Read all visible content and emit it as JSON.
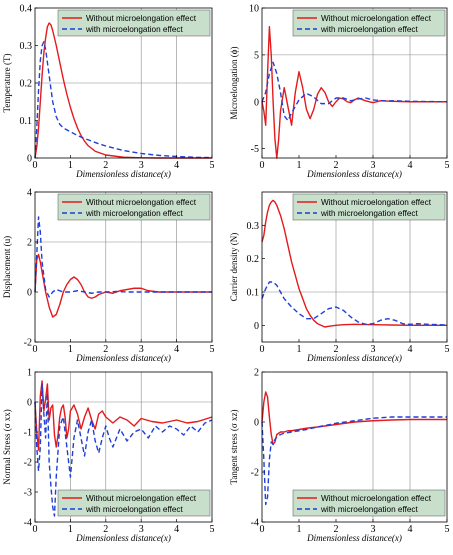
{
  "colors": {
    "series_without": "#e41a1c",
    "series_with": "#1f3fd6",
    "legend_bg": "#c7dfcb",
    "guide_line": "#8a8a8a"
  },
  "legend": {
    "without_label": "Without microelongation effect",
    "with_label": "with microelongation effect"
  },
  "chart_data": [
    {
      "type": "line",
      "ylabel": "Temperature (T)",
      "xlabel": "Dimensionless distance(x)",
      "xlim": [
        0,
        5
      ],
      "ylim": [
        0,
        0.4
      ],
      "xticks": [
        "0",
        "1",
        "2",
        "3",
        "4",
        "5"
      ],
      "yticks": [
        "0",
        "0.1",
        "0.2",
        "0.3",
        "0.4"
      ],
      "legend_position": "top-right",
      "series": [
        {
          "name": "Without microelongation effect",
          "x": [
            0,
            0.05,
            0.1,
            0.15,
            0.2,
            0.25,
            0.3,
            0.35,
            0.4,
            0.45,
            0.5,
            0.6,
            0.7,
            0.8,
            0.9,
            1.0,
            1.1,
            1.2,
            1.3,
            1.4,
            1.5,
            1.7,
            2.0,
            2.5,
            3.0,
            3.5,
            4.0,
            5.0
          ],
          "y": [
            0,
            0.03,
            0.08,
            0.15,
            0.22,
            0.28,
            0.32,
            0.35,
            0.36,
            0.355,
            0.34,
            0.3,
            0.255,
            0.21,
            0.17,
            0.135,
            0.105,
            0.08,
            0.06,
            0.045,
            0.033,
            0.018,
            0.008,
            0.002,
            0.0005,
            0,
            0,
            0
          ]
        },
        {
          "name": "with microelongation effect",
          "x": [
            0,
            0.05,
            0.1,
            0.15,
            0.2,
            0.25,
            0.3,
            0.4,
            0.5,
            0.6,
            0.7,
            0.8,
            0.9,
            1.0,
            1.2,
            1.4,
            1.6,
            1.8,
            2.0,
            2.5,
            3.0,
            3.5,
            4.0,
            4.5,
            5.0
          ],
          "y": [
            0,
            0.08,
            0.18,
            0.26,
            0.3,
            0.31,
            0.29,
            0.22,
            0.15,
            0.11,
            0.09,
            0.08,
            0.075,
            0.07,
            0.06,
            0.052,
            0.045,
            0.038,
            0.032,
            0.02,
            0.012,
            0.007,
            0.004,
            0.002,
            0.001
          ]
        }
      ]
    },
    {
      "type": "line",
      "ylabel": "Microelongation (ϕ)",
      "xlabel": "Dimensionless distance(x)",
      "xlim": [
        0,
        5
      ],
      "ylim": [
        -6,
        10
      ],
      "xticks": [
        "0",
        "1",
        "2",
        "3",
        "4",
        "5"
      ],
      "yticks": [
        "-5",
        "0",
        "5",
        "10"
      ],
      "legend_position": "top-right",
      "series": [
        {
          "name": "Without microelongation effect",
          "x": [
            0,
            0.05,
            0.1,
            0.15,
            0.2,
            0.25,
            0.3,
            0.35,
            0.4,
            0.45,
            0.5,
            0.6,
            0.7,
            0.8,
            0.9,
            1.0,
            1.1,
            1.2,
            1.3,
            1.4,
            1.5,
            1.6,
            1.7,
            1.8,
            1.9,
            2.0,
            2.1,
            2.2,
            2.3,
            2.4,
            2.5,
            2.6,
            2.8,
            3.0,
            3.2,
            3.5,
            4.0,
            4.5,
            5.0
          ],
          "y": [
            0,
            -1,
            -2.5,
            3,
            8,
            5,
            0,
            -4,
            -6,
            -4,
            -1,
            1.5,
            -0.5,
            -2.5,
            1,
            3.2,
            1.5,
            -0.8,
            -1.8,
            -0.8,
            0.8,
            1.5,
            1.0,
            0.0,
            -0.5,
            0,
            0.4,
            0.3,
            0.0,
            -0.1,
            0.2,
            0.4,
            0.1,
            -0.1,
            0.1,
            0.05,
            0,
            0,
            0
          ]
        },
        {
          "name": "with microelongation effect",
          "x": [
            0,
            0.1,
            0.2,
            0.3,
            0.4,
            0.5,
            0.6,
            0.7,
            0.8,
            0.9,
            1.0,
            1.2,
            1.4,
            1.6,
            1.8,
            2.0,
            2.2,
            2.4,
            2.6,
            2.8,
            3.0,
            3.3,
            3.6,
            4.0,
            4.5,
            5.0
          ],
          "y": [
            0,
            1,
            3,
            4.2,
            3,
            1,
            -1.5,
            -2.0,
            -1.2,
            -0.5,
            0.2,
            0.9,
            0.5,
            -0.2,
            -0.2,
            0.4,
            0.4,
            0.1,
            0.3,
            0.4,
            0.2,
            0.1,
            0.1,
            0.05,
            0.02,
            0
          ]
        }
      ]
    },
    {
      "type": "line",
      "ylabel": "Displacement  (u)",
      "xlabel": "Dimensionless distance(x)",
      "xlim": [
        0,
        5
      ],
      "ylim": [
        -2,
        4
      ],
      "xticks": [
        "0",
        "1",
        "2",
        "3",
        "4",
        "5"
      ],
      "yticks": [
        "-2",
        "0",
        "2",
        "4"
      ],
      "legend_position": "top-right",
      "series": [
        {
          "name": "Without microelongation effect",
          "x": [
            0,
            0.05,
            0.1,
            0.15,
            0.2,
            0.3,
            0.4,
            0.5,
            0.6,
            0.7,
            0.8,
            0.9,
            1.0,
            1.1,
            1.2,
            1.3,
            1.4,
            1.5,
            1.6,
            1.7,
            1.8,
            2.0,
            2.2,
            2.4,
            2.6,
            2.8,
            3.0,
            3.2,
            3.5,
            4.0,
            4.5,
            5.0
          ],
          "y": [
            0,
            1.3,
            1.5,
            1.2,
            0.8,
            0.0,
            -0.6,
            -1.0,
            -0.9,
            -0.5,
            0.0,
            0.3,
            0.5,
            0.6,
            0.5,
            0.3,
            0.0,
            -0.2,
            -0.25,
            -0.2,
            -0.1,
            0.0,
            -0.05,
            0.05,
            0.1,
            0.15,
            0.15,
            0.05,
            0.0,
            0.0,
            0.0,
            0.0
          ]
        },
        {
          "name": "with microelongation effect",
          "x": [
            0,
            0.05,
            0.1,
            0.15,
            0.2,
            0.3,
            0.4,
            0.5,
            0.6,
            0.7,
            0.8,
            1.0,
            1.2,
            1.4,
            1.6,
            1.8,
            2.0,
            2.3,
            2.6,
            3.0,
            3.5,
            4.0,
            4.5,
            5.0
          ],
          "y": [
            0,
            1.5,
            3.0,
            2.4,
            1.2,
            0.1,
            -0.2,
            0.0,
            0.1,
            0.05,
            0.0,
            0.0,
            0.05,
            0.0,
            -0.05,
            0.0,
            0.0,
            0.02,
            0.0,
            0.0,
            0.0,
            0.0,
            0.0,
            0.0
          ]
        }
      ]
    },
    {
      "type": "line",
      "ylabel": "Carrier density (N)",
      "xlabel": "Dimensionless distance(x)",
      "xlim": [
        0,
        5
      ],
      "ylim": [
        -0.05,
        0.4
      ],
      "xticks": [
        "0",
        "1",
        "2",
        "3",
        "4",
        "5"
      ],
      "yticks": [
        "0",
        "0.1",
        "0.2",
        "0.3"
      ],
      "legend_position": "top-right",
      "series": [
        {
          "name": "Without microelongation effect",
          "x": [
            0,
            0.05,
            0.1,
            0.15,
            0.2,
            0.25,
            0.3,
            0.35,
            0.4,
            0.5,
            0.6,
            0.7,
            0.8,
            0.9,
            1.0,
            1.1,
            1.2,
            1.3,
            1.4,
            1.5,
            1.6,
            1.7,
            1.8,
            2.0,
            2.2,
            2.5,
            3.0,
            3.5,
            4.0,
            4.5,
            5.0
          ],
          "y": [
            0.25,
            0.27,
            0.31,
            0.34,
            0.36,
            0.37,
            0.375,
            0.37,
            0.36,
            0.33,
            0.29,
            0.24,
            0.19,
            0.15,
            0.11,
            0.08,
            0.05,
            0.03,
            0.015,
            0.005,
            0.0,
            -0.005,
            -0.003,
            0.0,
            0.002,
            0.003,
            0.002,
            0.001,
            0.0,
            0.0,
            0.0
          ]
        },
        {
          "name": "with microelongation effect",
          "x": [
            0,
            0.1,
            0.2,
            0.3,
            0.4,
            0.5,
            0.6,
            0.8,
            1.0,
            1.2,
            1.4,
            1.6,
            1.8,
            2.0,
            2.2,
            2.4,
            2.6,
            2.8,
            3.0,
            3.2,
            3.4,
            3.6,
            3.8,
            4.0,
            4.2,
            4.5,
            5.0
          ],
          "y": [
            0.08,
            0.11,
            0.13,
            0.13,
            0.12,
            0.1,
            0.08,
            0.055,
            0.035,
            0.02,
            0.02,
            0.035,
            0.05,
            0.055,
            0.045,
            0.025,
            0.01,
            0.003,
            0.005,
            0.015,
            0.02,
            0.015,
            0.005,
            0.003,
            0.005,
            0.003,
            0.001
          ]
        }
      ]
    },
    {
      "type": "line",
      "ylabel": "Normal Stress (σ xx)",
      "xlabel": "Dimensionless distance(x)",
      "xlim": [
        0,
        5
      ],
      "ylim": [
        -4,
        1
      ],
      "xticks": [
        "0",
        "1",
        "2",
        "3",
        "4",
        "5"
      ],
      "yticks": [
        "-4",
        "-3",
        "-2",
        "-1",
        "0",
        "1"
      ],
      "legend_position": "bottom-right",
      "series": [
        {
          "name": "Without microelongation effect",
          "x": [
            0,
            0.05,
            0.1,
            0.15,
            0.2,
            0.25,
            0.3,
            0.35,
            0.4,
            0.45,
            0.5,
            0.55,
            0.6,
            0.65,
            0.7,
            0.75,
            0.8,
            0.85,
            0.9,
            0.95,
            1.0,
            1.1,
            1.2,
            1.3,
            1.4,
            1.5,
            1.6,
            1.7,
            1.8,
            1.9,
            2.0,
            2.2,
            2.4,
            2.6,
            2.8,
            3.0,
            3.3,
            3.6,
            4.0,
            4.3,
            4.6,
            5.0
          ],
          "y": [
            0,
            -1.0,
            -1.6,
            0.2,
            0.7,
            -0.3,
            0.1,
            0.6,
            -0.6,
            -0.2,
            -0.1,
            -1.1,
            -1.5,
            -1.1,
            -0.5,
            -0.2,
            -0.1,
            -0.5,
            -1.2,
            -0.9,
            -0.3,
            -0.1,
            -0.4,
            -0.9,
            -0.5,
            -0.2,
            -0.6,
            -0.9,
            -0.4,
            -0.3,
            -0.5,
            -0.7,
            -0.5,
            -0.6,
            -0.8,
            -0.55,
            -0.65,
            -0.7,
            -0.6,
            -0.7,
            -0.65,
            -0.5
          ]
        },
        {
          "name": "with microelongation effect",
          "x": [
            0,
            0.05,
            0.1,
            0.15,
            0.2,
            0.25,
            0.3,
            0.35,
            0.4,
            0.45,
            0.5,
            0.55,
            0.6,
            0.7,
            0.8,
            0.9,
            1.0,
            1.1,
            1.2,
            1.3,
            1.4,
            1.5,
            1.6,
            1.7,
            1.8,
            1.9,
            2.0,
            2.1,
            2.2,
            2.4,
            2.6,
            2.8,
            3.0,
            3.2,
            3.4,
            3.6,
            3.8,
            4.0,
            4.2,
            4.4,
            4.6,
            4.8,
            5.0
          ],
          "y": [
            0,
            -1.5,
            -2.3,
            -1.5,
            0.6,
            -0.4,
            -1.2,
            0.3,
            -2.0,
            -2.8,
            -3.5,
            -3.8,
            -2.5,
            -0.8,
            -0.5,
            -1.5,
            -2.5,
            -1.2,
            -0.6,
            -1.2,
            -1.8,
            -1.0,
            -0.6,
            -1.3,
            -1.7,
            -1.2,
            -0.8,
            -1.2,
            -1.5,
            -0.9,
            -1.3,
            -1.0,
            -0.9,
            -1.2,
            -0.8,
            -1.0,
            -0.8,
            -0.9,
            -1.1,
            -0.8,
            -1.0,
            -0.7,
            -0.6
          ]
        }
      ]
    },
    {
      "type": "line",
      "ylabel": "Tangent stress (σ xz)",
      "xlabel": "Dimensionless distance(x)",
      "xlim": [
        0,
        5
      ],
      "ylim": [
        -4,
        2
      ],
      "xticks": [
        "0",
        "1",
        "2",
        "3",
        "4",
        "5"
      ],
      "yticks": [
        "-4",
        "-2",
        "0",
        "2"
      ],
      "legend_position": "bottom-right",
      "series": [
        {
          "name": "Without microelongation effect",
          "x": [
            0,
            0.05,
            0.1,
            0.15,
            0.2,
            0.25,
            0.3,
            0.35,
            0.4,
            0.5,
            0.6,
            0.7,
            0.8,
            1.0,
            1.2,
            1.5,
            2.0,
            2.5,
            3.0,
            3.5,
            4.0,
            4.5,
            5.0
          ],
          "y": [
            0,
            0.8,
            1.2,
            1.0,
            0.2,
            -0.5,
            -0.9,
            -0.8,
            -0.5,
            -0.4,
            -0.4,
            -0.35,
            -0.35,
            -0.3,
            -0.25,
            -0.2,
            -0.1,
            0.0,
            0.05,
            0.08,
            0.1,
            0.1,
            0.1
          ]
        },
        {
          "name": "with microelongation effect",
          "x": [
            0,
            0.05,
            0.1,
            0.15,
            0.2,
            0.25,
            0.3,
            0.35,
            0.4,
            0.5,
            0.6,
            0.8,
            1.0,
            1.2,
            1.5,
            2.0,
            2.5,
            3.0,
            3.5,
            4.0,
            4.5,
            5.0
          ],
          "y": [
            0,
            -1.5,
            -3.3,
            -3.0,
            -1.5,
            -0.8,
            -0.9,
            -0.7,
            -0.6,
            -0.5,
            -0.45,
            -0.4,
            -0.35,
            -0.3,
            -0.2,
            -0.05,
            0.05,
            0.15,
            0.2,
            0.2,
            0.2,
            0.2
          ]
        }
      ]
    }
  ]
}
